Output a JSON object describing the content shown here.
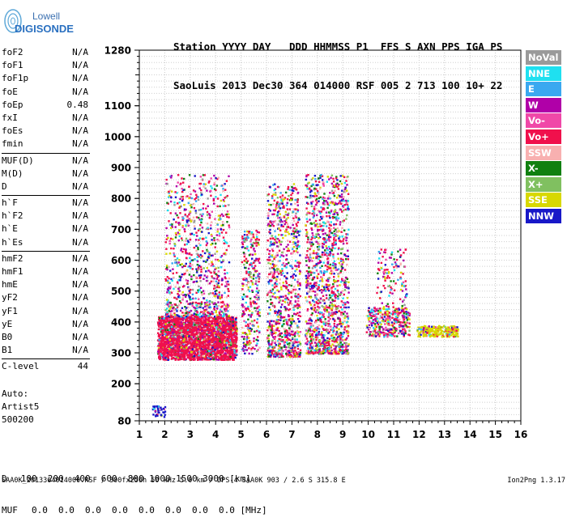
{
  "logo": {
    "line1": "Lowell",
    "line2": "DIGISONDE"
  },
  "header": {
    "line1": "Station YYYY DAY   DDD HHMMSS P1  FFS S AXN PPS IGA PS",
    "line2": "SaoLuis 2013 Dec30 364 014000 RSF 005 2 713 100 10+ 22"
  },
  "params": [
    {
      "group": [
        {
          "name": "foF2",
          "value": "N/A"
        },
        {
          "name": "foF1",
          "value": "N/A"
        },
        {
          "name": "foF1p",
          "value": "N/A"
        },
        {
          "name": "foE",
          "value": "N/A"
        },
        {
          "name": "foEp",
          "value": "0.48"
        },
        {
          "name": "fxI",
          "value": "N/A"
        },
        {
          "name": "foEs",
          "value": "N/A"
        },
        {
          "name": "fmin",
          "value": "N/A"
        }
      ]
    },
    {
      "group": [
        {
          "name": "MUF(D)",
          "value": "N/A"
        },
        {
          "name": "M(D)",
          "value": "N/A"
        },
        {
          "name": "D",
          "value": "N/A"
        }
      ]
    },
    {
      "group": [
        {
          "name": "h`F",
          "value": "N/A"
        },
        {
          "name": "h`F2",
          "value": "N/A"
        },
        {
          "name": "h`E",
          "value": "N/A"
        },
        {
          "name": "h`Es",
          "value": "N/A"
        }
      ]
    },
    {
      "group": [
        {
          "name": "hmF2",
          "value": "N/A"
        },
        {
          "name": "hmF1",
          "value": "N/A"
        },
        {
          "name": "hmE",
          "value": "N/A"
        },
        {
          "name": "yF2",
          "value": "N/A"
        },
        {
          "name": "yF1",
          "value": "N/A"
        },
        {
          "name": "yE",
          "value": "N/A"
        },
        {
          "name": "B0",
          "value": "N/A"
        },
        {
          "name": "B1",
          "value": "N/A"
        }
      ]
    },
    {
      "group": [
        {
          "name": "C-level",
          "value": "44"
        }
      ]
    }
  ],
  "auto": {
    "line1": "Auto:",
    "line2": "Artist5",
    "line3": "500200"
  },
  "legend": [
    {
      "label": "NoVal",
      "color": "#9a9a9a"
    },
    {
      "label": "NNE",
      "color": "#1fe0f0"
    },
    {
      "label": "E",
      "color": "#3aa8f0"
    },
    {
      "label": "W",
      "color": "#b000a8"
    },
    {
      "label": "Vo-",
      "color": "#f048a8"
    },
    {
      "label": "Vo+",
      "color": "#f0104c"
    },
    {
      "label": "SSW",
      "color": "#f8b0b0"
    },
    {
      "label": "X-",
      "color": "#108010"
    },
    {
      "label": "X+",
      "color": "#80c060"
    },
    {
      "label": "SSE",
      "color": "#d8d800"
    },
    {
      "label": "NNW",
      "color": "#1818c8"
    }
  ],
  "muf_table": {
    "d_label": "D",
    "d_values": [
      "100",
      "200",
      "400",
      "600",
      "800",
      "1000",
      "1500",
      "3000"
    ],
    "d_unit": "[km]",
    "muf_label": "MUF",
    "muf_values": [
      "0.0",
      "0.0",
      "0.0",
      "0.0",
      "0.0",
      "0.0",
      "0.0",
      "0.0"
    ],
    "muf_unit": "[MHz]"
  },
  "footer": {
    "left": "SAA0K_2013364014000.RSF / 300fx256h 50 kHz 5.0 km / DPS-4 SAA0K 903 / 2.6 S 315.8 E",
    "right": "Ion2Png 1.3.17"
  },
  "chart_data": {
    "type": "scatter",
    "xlim": [
      1,
      16
    ],
    "ylim": [
      80,
      1280
    ],
    "x_ticks": [
      1,
      2,
      3,
      4,
      5,
      6,
      7,
      8,
      9,
      10,
      11,
      12,
      13,
      14,
      15,
      16
    ],
    "y_ticks": [
      80,
      200,
      300,
      400,
      500,
      600,
      700,
      800,
      900,
      1000,
      1100,
      1280
    ],
    "y_tick_labels": [
      "80",
      "200",
      "300",
      "400",
      "500",
      "600",
      "700",
      "800",
      "900",
      "1000",
      "1100",
      "1280"
    ],
    "grid": true,
    "legend_position": "right",
    "echo_regions": [
      {
        "f": [
          1.5,
          2.0
        ],
        "h": [
          95,
          130
        ],
        "series": "NNW",
        "note": "low-height echo cluster"
      },
      {
        "f": [
          1.7,
          4.8
        ],
        "h": [
          280,
          420
        ],
        "series": "Vo+"
      },
      {
        "f": [
          2.0,
          4.5
        ],
        "h": [
          420,
          880
        ]
      },
      {
        "f": [
          5.0,
          5.7
        ],
        "h": [
          300,
          700
        ]
      },
      {
        "f": [
          6.0,
          7.3
        ],
        "h": [
          290,
          850
        ]
      },
      {
        "f": [
          7.5,
          9.2
        ],
        "h": [
          300,
          880
        ]
      },
      {
        "f": [
          9.9,
          11.6
        ],
        "h": [
          355,
          450
        ]
      },
      {
        "f": [
          10.3,
          11.5
        ],
        "h": [
          450,
          640
        ]
      },
      {
        "f": [
          11.9,
          13.5
        ],
        "h": [
          355,
          390
        ],
        "series": "SSE"
      }
    ]
  }
}
